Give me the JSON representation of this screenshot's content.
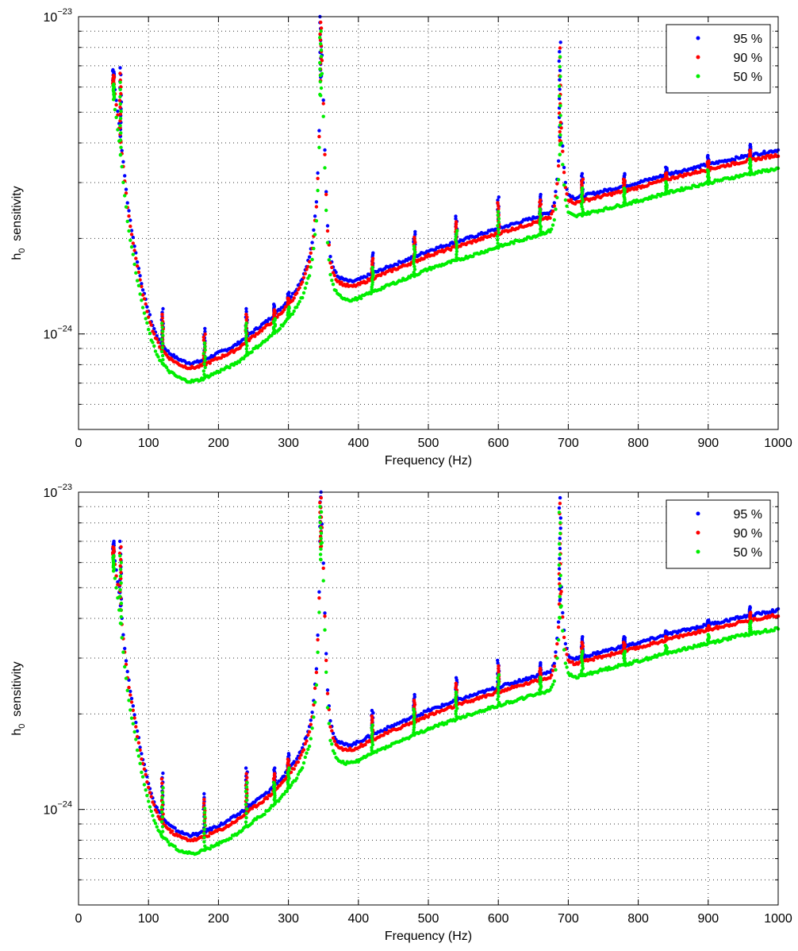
{
  "chart_data": [
    {
      "type": "scatter",
      "title": "",
      "xlabel": "Frequency (Hz)",
      "ylabel": "h",
      "ylabel_sub": "0",
      "ylabel_rest": "sensitivity",
      "xlim": [
        0,
        1000
      ],
      "ylim": [
        5e-25,
        1e-23
      ],
      "yscale": "log",
      "xticks": [
        0,
        100,
        200,
        300,
        400,
        500,
        600,
        700,
        800,
        900,
        1000
      ],
      "xtick_labels": [
        "0",
        "100",
        "200",
        "300",
        "400",
        "500",
        "600",
        "700",
        "800",
        "900",
        "1000"
      ],
      "ytick_labels": [
        {
          "base": "10",
          "exp": "−23",
          "value": 1e-23
        },
        {
          "base": "10",
          "exp": "−24",
          "value": 1e-24
        }
      ],
      "grid": true,
      "legend_position": "top-right",
      "series": [
        {
          "name": "95 %",
          "color": "#0000ff",
          "offset": 1.0
        },
        {
          "name": "90 %",
          "color": "#ff0000",
          "offset": 0.965
        },
        {
          "name": "50 %",
          "color": "#00ee00",
          "offset": 0.875
        }
      ],
      "baseline_points": [
        [
          50,
          6.3e-24
        ],
        [
          55,
          5.3e-24
        ],
        [
          60,
          4.2e-24
        ],
        [
          65,
          3.3e-24
        ],
        [
          70,
          2.6e-24
        ],
        [
          75,
          2.2e-24
        ],
        [
          80,
          1.9e-24
        ],
        [
          85,
          1.65e-24
        ],
        [
          90,
          1.45e-24
        ],
        [
          95,
          1.3e-24
        ],
        [
          100,
          1.18e-24
        ],
        [
          105,
          1.08e-24
        ],
        [
          110,
          1.01e-24
        ],
        [
          115,
          9.6e-25
        ],
        [
          120,
          9.2e-25
        ],
        [
          130,
          8.7e-25
        ],
        [
          140,
          8.4e-25
        ],
        [
          150,
          8.2e-25
        ],
        [
          160,
          8.1e-25
        ],
        [
          170,
          8.15e-25
        ],
        [
          180,
          8.3e-25
        ],
        [
          190,
          8.5e-25
        ],
        [
          200,
          8.7e-25
        ],
        [
          210,
          8.9e-25
        ],
        [
          220,
          9.1e-25
        ],
        [
          230,
          9.4e-25
        ],
        [
          240,
          9.8e-25
        ],
        [
          250,
          1.02e-24
        ],
        [
          260,
          1.06e-24
        ],
        [
          270,
          1.1e-24
        ],
        [
          280,
          1.15e-24
        ],
        [
          290,
          1.21e-24
        ],
        [
          300,
          1.28e-24
        ],
        [
          310,
          1.37e-24
        ],
        [
          320,
          1.5e-24
        ],
        [
          330,
          1.75e-24
        ],
        [
          335,
          2e-24
        ],
        [
          340,
          2.6e-24
        ],
        [
          343,
          3.6e-24
        ],
        [
          346,
          6.5e-24
        ],
        [
          348,
          7.5e-24
        ],
        [
          350,
          5.5e-24
        ],
        [
          353,
          3.2e-24
        ],
        [
          356,
          2.2e-24
        ],
        [
          360,
          1.75e-24
        ],
        [
          365,
          1.6e-24
        ],
        [
          370,
          1.52e-24
        ],
        [
          380,
          1.48e-24
        ],
        [
          390,
          1.46e-24
        ],
        [
          400,
          1.48e-24
        ],
        [
          420,
          1.55e-24
        ],
        [
          450,
          1.65e-24
        ],
        [
          480,
          1.75e-24
        ],
        [
          500,
          1.83e-24
        ],
        [
          550,
          1.98e-24
        ],
        [
          600,
          2.15e-24
        ],
        [
          650,
          2.32e-24
        ],
        [
          675,
          2.42e-24
        ],
        [
          680,
          2.6e-24
        ],
        [
          685,
          3.2e-24
        ],
        [
          688,
          4.2e-24
        ],
        [
          690,
          4.6e-24
        ],
        [
          692,
          3.9e-24
        ],
        [
          695,
          3.1e-24
        ],
        [
          700,
          2.75e-24
        ],
        [
          710,
          2.68e-24
        ],
        [
          720,
          2.72e-24
        ],
        [
          750,
          2.82e-24
        ],
        [
          800,
          3e-24
        ],
        [
          850,
          3.22e-24
        ],
        [
          900,
          3.42e-24
        ],
        [
          950,
          3.62e-24
        ],
        [
          1000,
          3.8e-24
        ]
      ],
      "spikes": [
        [
          50,
          6.8e-24
        ],
        [
          60,
          6.9e-24
        ],
        [
          120,
          1.2e-24
        ],
        [
          180,
          1.04e-24
        ],
        [
          240,
          1.2e-24
        ],
        [
          280,
          1.24e-24
        ],
        [
          300,
          1.35e-24
        ],
        [
          346,
          1e-23
        ],
        [
          420,
          1.8e-24
        ],
        [
          480,
          2.1e-24
        ],
        [
          540,
          2.35e-24
        ],
        [
          600,
          2.7e-24
        ],
        [
          660,
          2.75e-24
        ],
        [
          688,
          8.3e-24
        ],
        [
          720,
          3.2e-24
        ],
        [
          780,
          3.2e-24
        ],
        [
          840,
          3.35e-24
        ],
        [
          900,
          3.65e-24
        ],
        [
          960,
          3.95e-24
        ]
      ]
    },
    {
      "type": "scatter",
      "title": "",
      "xlabel": "Frequency (Hz)",
      "ylabel": "h",
      "ylabel_sub": "0",
      "ylabel_rest": "sensitivity",
      "xlim": [
        0,
        1000
      ],
      "ylim": [
        5e-25,
        1e-23
      ],
      "yscale": "log",
      "xticks": [
        0,
        100,
        200,
        300,
        400,
        500,
        600,
        700,
        800,
        900,
        1000
      ],
      "xtick_labels": [
        "0",
        "100",
        "200",
        "300",
        "400",
        "500",
        "600",
        "700",
        "800",
        "900",
        "1000"
      ],
      "ytick_labels": [
        {
          "base": "10",
          "exp": "−23",
          "value": 1e-23
        },
        {
          "base": "10",
          "exp": "−24",
          "value": 1e-24
        }
      ],
      "grid": true,
      "legend_position": "top-right",
      "series": [
        {
          "name": "95 %",
          "color": "#0000ff",
          "offset": 1.0
        },
        {
          "name": "90 %",
          "color": "#ff0000",
          "offset": 0.965
        },
        {
          "name": "50 %",
          "color": "#00ee00",
          "offset": 0.875
        }
      ],
      "baseline_points": [
        [
          50,
          6.5e-24
        ],
        [
          55,
          5.5e-24
        ],
        [
          60,
          4.4e-24
        ],
        [
          65,
          3.4e-24
        ],
        [
          70,
          2.7e-24
        ],
        [
          75,
          2.3e-24
        ],
        [
          80,
          2e-24
        ],
        [
          85,
          1.72e-24
        ],
        [
          90,
          1.5e-24
        ],
        [
          95,
          1.35e-24
        ],
        [
          100,
          1.22e-24
        ],
        [
          105,
          1.11e-24
        ],
        [
          110,
          1.03e-24
        ],
        [
          115,
          9.8e-25
        ],
        [
          120,
          9.4e-25
        ],
        [
          130,
          8.9e-25
        ],
        [
          140,
          8.6e-25
        ],
        [
          150,
          8.4e-25
        ],
        [
          160,
          8.3e-25
        ],
        [
          170,
          8.35e-25
        ],
        [
          180,
          8.5e-25
        ],
        [
          190,
          8.7e-25
        ],
        [
          200,
          8.9e-25
        ],
        [
          210,
          9.1e-25
        ],
        [
          220,
          9.4e-25
        ],
        [
          230,
          9.7e-25
        ],
        [
          240,
          1.01e-24
        ],
        [
          250,
          1.05e-24
        ],
        [
          260,
          1.09e-24
        ],
        [
          270,
          1.13e-24
        ],
        [
          280,
          1.19e-24
        ],
        [
          290,
          1.25e-24
        ],
        [
          300,
          1.33e-24
        ],
        [
          310,
          1.42e-24
        ],
        [
          320,
          1.56e-24
        ],
        [
          330,
          1.82e-24
        ],
        [
          335,
          2.1e-24
        ],
        [
          340,
          2.8e-24
        ],
        [
          343,
          4e-24
        ],
        [
          346,
          7e-24
        ],
        [
          348,
          8e-24
        ],
        [
          350,
          6e-24
        ],
        [
          353,
          3.5e-24
        ],
        [
          356,
          2.4e-24
        ],
        [
          360,
          1.9e-24
        ],
        [
          365,
          1.72e-24
        ],
        [
          370,
          1.64e-24
        ],
        [
          380,
          1.6e-24
        ],
        [
          390,
          1.6e-24
        ],
        [
          400,
          1.63e-24
        ],
        [
          420,
          1.72e-24
        ],
        [
          450,
          1.84e-24
        ],
        [
          480,
          1.96e-24
        ],
        [
          500,
          2.05e-24
        ],
        [
          550,
          2.24e-24
        ],
        [
          600,
          2.43e-24
        ],
        [
          650,
          2.62e-24
        ],
        [
          675,
          2.72e-24
        ],
        [
          680,
          2.9e-24
        ],
        [
          685,
          3.6e-24
        ],
        [
          688,
          4.6e-24
        ],
        [
          690,
          5e-24
        ],
        [
          692,
          4.2e-24
        ],
        [
          695,
          3.4e-24
        ],
        [
          700,
          3.05e-24
        ],
        [
          710,
          2.98e-24
        ],
        [
          720,
          3.02e-24
        ],
        [
          750,
          3.15e-24
        ],
        [
          800,
          3.35e-24
        ],
        [
          850,
          3.6e-24
        ],
        [
          900,
          3.82e-24
        ],
        [
          950,
          4.05e-24
        ],
        [
          1000,
          4.25e-24
        ]
      ],
      "spikes": [
        [
          50,
          7e-24
        ],
        [
          60,
          7e-24
        ],
        [
          120,
          1.3e-24
        ],
        [
          180,
          1.12e-24
        ],
        [
          240,
          1.35e-24
        ],
        [
          280,
          1.35e-24
        ],
        [
          300,
          1.5e-24
        ],
        [
          346,
          1e-23
        ],
        [
          420,
          2.05e-24
        ],
        [
          480,
          2.3e-24
        ],
        [
          540,
          2.6e-24
        ],
        [
          600,
          2.95e-24
        ],
        [
          660,
          2.9e-24
        ],
        [
          688,
          9.6e-24
        ],
        [
          720,
          3.5e-24
        ],
        [
          780,
          3.5e-24
        ],
        [
          840,
          3.65e-24
        ],
        [
          900,
          3.95e-24
        ],
        [
          960,
          4.35e-24
        ]
      ]
    }
  ]
}
